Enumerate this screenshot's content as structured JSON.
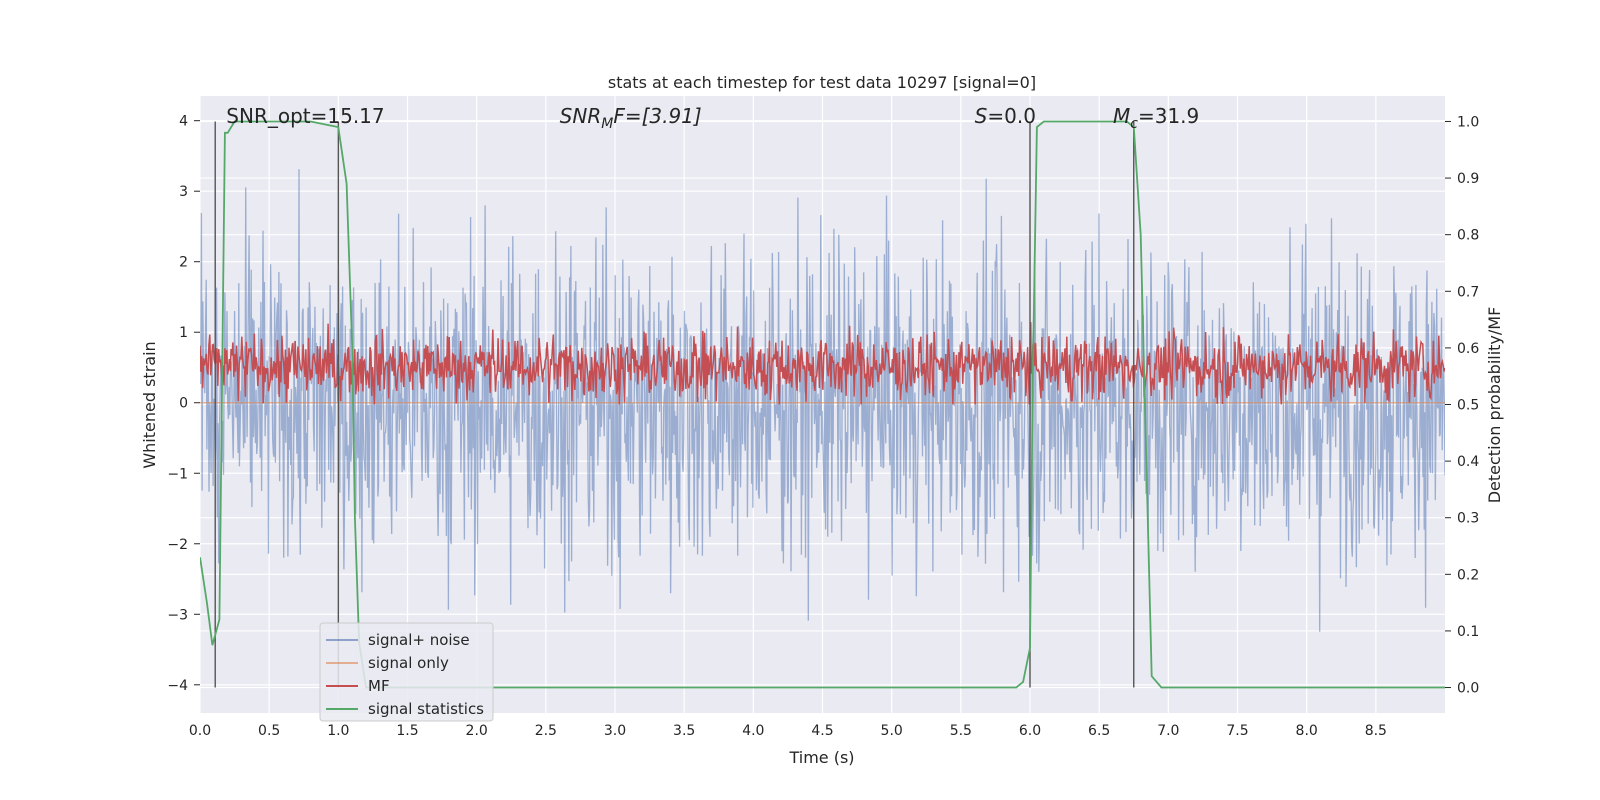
{
  "chart_data": {
    "type": "line",
    "title": "stats at each timestep for test data 10297 [signal=0]",
    "xlabel": "Time (s)",
    "ylabel": "Whitened strain",
    "y2label": "Detection probability/MF",
    "xlim": [
      0.0,
      9.0
    ],
    "ylim": [
      -4.4,
      4.35
    ],
    "y2lim": [
      -0.045,
      1.045
    ],
    "xticks": [
      "0.0",
      "0.5",
      "1.0",
      "1.5",
      "2.0",
      "2.5",
      "3.0",
      "3.5",
      "4.0",
      "4.5",
      "5.0",
      "5.5",
      "6.0",
      "6.5",
      "7.0",
      "7.5",
      "8.0",
      "8.5"
    ],
    "yticks": [
      "−4",
      "−3",
      "−2",
      "−1",
      "0",
      "1",
      "2",
      "3",
      "4"
    ],
    "y2ticks": [
      "0.0",
      "0.1",
      "0.2",
      "0.3",
      "0.4",
      "0.5",
      "0.6",
      "0.7",
      "0.8",
      "0.9",
      "1.0"
    ],
    "grid": true,
    "legend_position": "lower-left",
    "annotations": [
      {
        "id": "snr_opt",
        "text": "SNR_opt=15.17",
        "x": 0.19
      },
      {
        "id": "snr_mf",
        "text": "SNR_MF=[3.91]",
        "main": "SNR",
        "sub": "M",
        "tail": "F=[3.91]",
        "x": 2.6
      },
      {
        "id": "s_val",
        "text": "S=0.0",
        "main": "S",
        "tail": "=0.0",
        "x": 5.6
      },
      {
        "id": "mc_val",
        "text": "M_c=31.9",
        "main": "M",
        "sub": "c",
        "tail": "=31.9",
        "x": 6.6
      }
    ],
    "vertical_markers_x": [
      0.11,
      1.0,
      6.0,
      6.75
    ],
    "series": [
      {
        "name": "signal+ noise",
        "color": "#4c72b0",
        "amplitude_range": [
          -4.0,
          4.0
        ],
        "typical_band": [
          -2.0,
          2.0
        ]
      },
      {
        "name": "signal only",
        "color": "#dd8452",
        "values_constant": 0.0
      },
      {
        "name": "MF",
        "color": "#c44e52",
        "axis": "y2",
        "typical_band": [
          0.52,
          0.62
        ],
        "range": [
          0.5,
          0.65
        ]
      },
      {
        "name": "signal statistics",
        "color": "#55a868",
        "axis": "y2",
        "x": [
          0.0,
          0.05,
          0.09,
          0.14,
          0.18,
          0.2,
          0.25,
          0.3,
          0.5,
          0.8,
          1.0,
          1.06,
          1.1,
          1.12,
          1.15,
          1.2,
          1.5,
          3.0,
          5.0,
          5.9,
          5.95,
          6.0,
          6.02,
          6.05,
          6.1,
          6.5,
          6.7,
          6.75,
          6.8,
          6.88,
          6.95,
          7.0,
          8.0,
          9.0
        ],
        "y": [
          0.23,
          0.15,
          0.075,
          0.12,
          0.98,
          0.98,
          1.0,
          1.0,
          1.0,
          1.0,
          0.99,
          0.89,
          0.6,
          0.3,
          0.08,
          0.0,
          0.0,
          0.0,
          0.0,
          0.0,
          0.01,
          0.07,
          0.55,
          0.99,
          1.0,
          1.0,
          1.0,
          0.99,
          0.8,
          0.02,
          0.0,
          0.0,
          0.0,
          0.0
        ]
      }
    ]
  }
}
